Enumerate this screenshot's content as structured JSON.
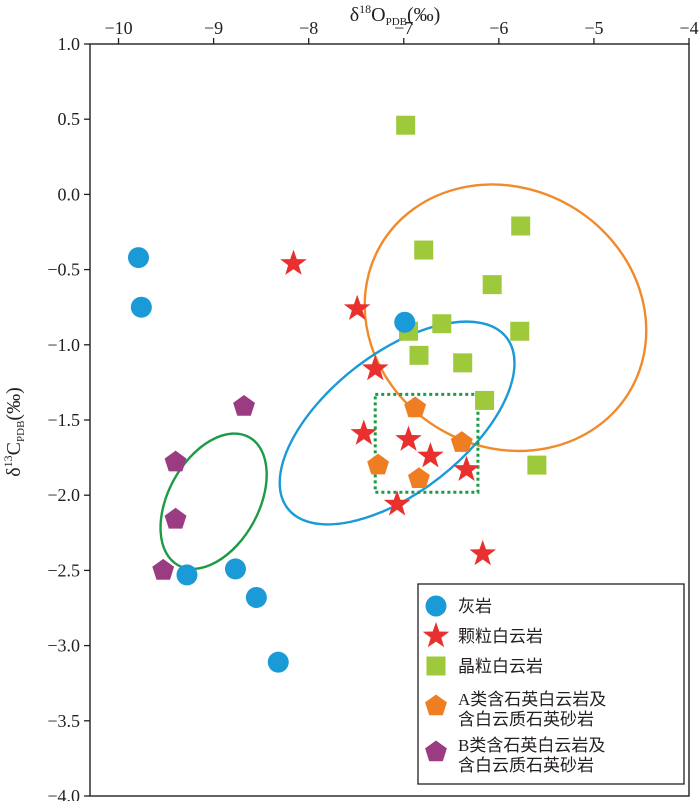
{
  "chart_data": {
    "type": "scatter",
    "xlabel_main": "δ",
    "xlabel_sup": "18",
    "xlabel_sym": "O",
    "xlabel_sub": "PDB",
    "xlabel_unit": "(‰)",
    "ylabel_main": "δ",
    "ylabel_sup": "13",
    "ylabel_sym": "C",
    "ylabel_sub": "PDB",
    "ylabel_unit": "(‰)",
    "x_axis_position": "top",
    "xlim": [
      -10.3,
      -4.0
    ],
    "ylim": [
      -4.0,
      1.0
    ],
    "x_ticks": [
      -10,
      -9,
      -8,
      -7,
      -6,
      -5,
      -4
    ],
    "x_tick_labels": [
      "−10",
      "−9",
      "−8",
      "−7",
      "−6",
      "−5",
      "−4"
    ],
    "y_ticks": [
      1.0,
      0.5,
      0.0,
      -0.5,
      -1.0,
      -1.5,
      -2.0,
      -2.5,
      -3.0,
      -3.5,
      -4.0
    ],
    "y_tick_labels": [
      "1.0",
      "0.5",
      "0.0",
      "−0.5",
      "−1.0",
      "−1.5",
      "−2.0",
      "−2.5",
      "−3.0",
      "−3.5",
      "−4.0"
    ],
    "grid": false,
    "legend_position": "bottom-right",
    "series": [
      {
        "name": "灰岩",
        "marker": "circle",
        "color": "#1a9ad6",
        "points": [
          [
            -9.79,
            -0.42
          ],
          [
            -9.76,
            -0.75
          ],
          [
            -9.28,
            -2.53
          ],
          [
            -8.77,
            -2.49
          ],
          [
            -8.55,
            -2.68
          ],
          [
            -8.32,
            -3.11
          ],
          [
            -6.99,
            -0.85
          ]
        ]
      },
      {
        "name": "颗粒白云岩",
        "marker": "star",
        "color": "#e8312f",
        "points": [
          [
            -8.16,
            -0.46
          ],
          [
            -7.49,
            -0.76
          ],
          [
            -7.3,
            -1.16
          ],
          [
            -7.42,
            -1.59
          ],
          [
            -6.95,
            -1.63
          ],
          [
            -6.72,
            -1.74
          ],
          [
            -6.34,
            -1.83
          ],
          [
            -7.07,
            -2.06
          ],
          [
            -6.17,
            -2.39
          ]
        ]
      },
      {
        "name": "晶粒白云岩",
        "marker": "square",
        "color": "#9ec93a",
        "points": [
          [
            -6.98,
            0.46
          ],
          [
            -5.77,
            -0.21
          ],
          [
            -6.79,
            -0.37
          ],
          [
            -6.07,
            -0.6
          ],
          [
            -6.6,
            -0.86
          ],
          [
            -6.95,
            -0.91
          ],
          [
            -5.78,
            -0.91
          ],
          [
            -6.84,
            -1.07
          ],
          [
            -6.38,
            -1.12
          ],
          [
            -6.15,
            -1.37
          ],
          [
            -5.6,
            -1.8
          ]
        ]
      },
      {
        "name": "A类含石英白云岩及\n含白云质石英砂岩",
        "marker": "pentagon",
        "color": "#ef7d22",
        "points": [
          [
            -6.88,
            -1.42
          ],
          [
            -6.39,
            -1.65
          ],
          [
            -7.27,
            -1.8
          ],
          [
            -6.84,
            -1.89
          ]
        ]
      },
      {
        "name": "B类含石英白云岩及\n含白云质石英砂岩",
        "marker": "pentagon",
        "color": "#9b3c82",
        "points": [
          [
            -8.68,
            -1.41
          ],
          [
            -9.4,
            -1.78
          ],
          [
            -9.4,
            -2.16
          ],
          [
            -9.53,
            -2.5
          ]
        ]
      }
    ],
    "ellipses": [
      {
        "color": "#f08a2a",
        "style": "solid",
        "cx": -5.93,
        "cy": -0.82,
        "rx": 1.36,
        "ry": 0.96,
        "rotation_deg": -60
      },
      {
        "color": "#1a9ad6",
        "style": "solid",
        "cx": -7.07,
        "cy": -1.52,
        "rx": 1.46,
        "ry": 0.46,
        "rotation_deg": -38
      },
      {
        "color": "#1d9a45",
        "style": "solid",
        "cx": -9.0,
        "cy": -2.04,
        "rx": 0.77,
        "ry": 0.3,
        "rotation_deg": -61
      }
    ],
    "boxes": [
      {
        "color": "#1d9a45",
        "style": "dotted",
        "x0": -7.3,
        "x1": -6.22,
        "y0": -1.98,
        "y1": -1.33
      }
    ]
  }
}
